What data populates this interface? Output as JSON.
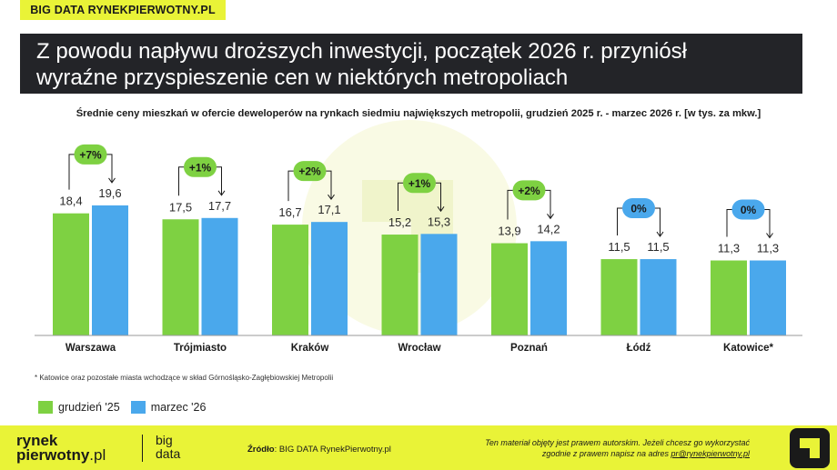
{
  "header": {
    "brand_tag": "BIG DATA RYNEKPIERWOTNY.PL",
    "title_line1": "Z powodu napływu droższych inwestycji, początek 2026 r. przyniósł",
    "title_line2": "wyraźne przyspieszenie cen w niektórych metropoliach"
  },
  "chart_data": {
    "type": "bar",
    "title": "Średnie ceny mieszkań w ofercie deweloperów na rynkach siedmiu największych metropolii, grudzień 2025 r. - marzec 2026 r. [w tys. za mkw.]",
    "categories": [
      "Warszawa",
      "Trójmiasto",
      "Kraków",
      "Wrocław",
      "Poznań",
      "Łódź",
      "Katowice*"
    ],
    "series": [
      {
        "name": "grudzień '25",
        "color": "#7ed142",
        "values": [
          18.4,
          17.5,
          16.7,
          15.2,
          13.9,
          11.5,
          11.3
        ],
        "labels": [
          "18,4",
          "17,5",
          "16,7",
          "15,2",
          "13,9",
          "11,5",
          "11,3"
        ]
      },
      {
        "name": "marzec '26",
        "color": "#4aa8ec",
        "values": [
          19.6,
          17.7,
          17.1,
          15.3,
          14.2,
          11.5,
          11.3
        ],
        "labels": [
          "19,6",
          "17,7",
          "17,1",
          "15,3",
          "14,2",
          "11,5",
          "11,3"
        ]
      }
    ],
    "changes": [
      "+7%",
      "+1%",
      "+2%",
      "+1%",
      "+2%",
      "0%",
      "0%"
    ],
    "change_colors": {
      "positive": "#7ed142",
      "zero": "#4aa8ec"
    },
    "ylim": [
      0,
      22
    ],
    "grid": false,
    "legend_position": "bottom-left"
  },
  "footnote": "* Katowice oraz pozostałe miasta wchodzące w skład Górnośląsko-Zagłębiowskiej Metropolii",
  "footer": {
    "logo_line1": "rynek",
    "logo_line2": "pierwotny",
    "logo_pl": ".pl",
    "logo_big1": "big",
    "logo_big2": "data",
    "source_label": "Źródło",
    "source_text": ": BIG DATA RynekPierwotny.pl",
    "copyright_line1": "Ten materiał objęty jest prawem autorskim. Jeżeli chcesz go wykorzystać",
    "copyright_line2": "zgodnie z prawem napisz na adres ",
    "copyright_email": "pr@rynekpierwotny.pl"
  },
  "colors": {
    "accent": "#e9f337",
    "dark": "#232428"
  }
}
